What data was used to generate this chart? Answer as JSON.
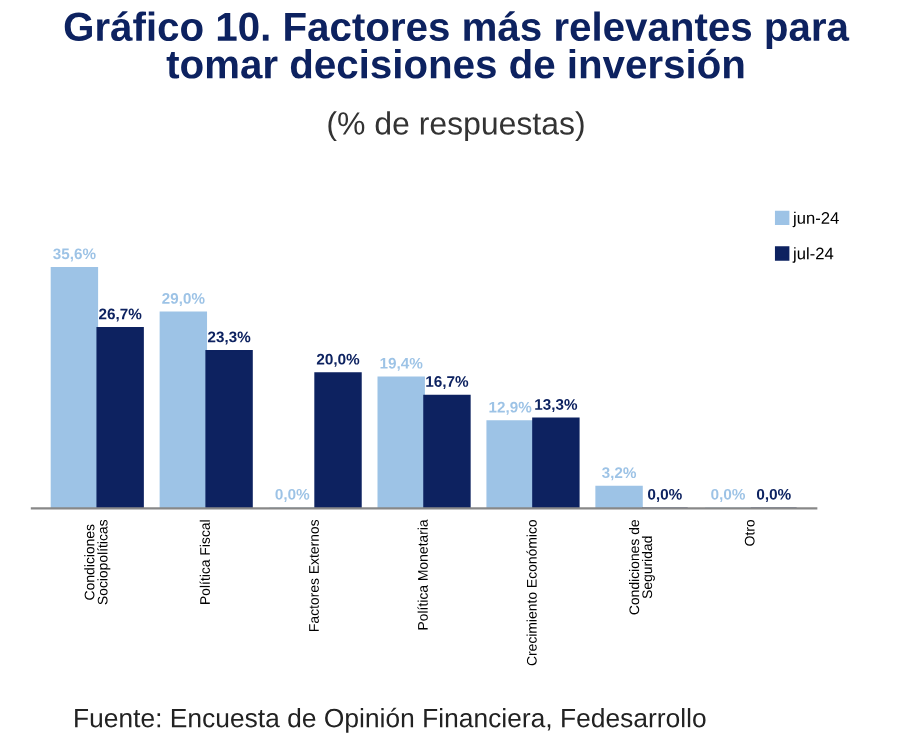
{
  "chart_data": {
    "type": "bar",
    "title": "Gráfico 10. Factores más relevantes para\ntomar decisiones de inversión",
    "subtitle": "(% de respuestas)",
    "categories": [
      "Condiciones\nSociopolíticas",
      "Política Fiscal",
      "Factores Externos",
      "Política Monetaria",
      "Crecimiento Económico",
      "Condiciones de\nSeguridad",
      "Otro"
    ],
    "series": [
      {
        "name": "jun-24",
        "color": "#9dc3e6",
        "values": [
          35.6,
          29.0,
          0.0,
          19.4,
          12.9,
          3.2,
          0.0
        ],
        "value_labels": [
          "35,6%",
          "29,0%",
          "0,0%",
          "19,4%",
          "12,9%",
          "3,2%",
          "0,0%"
        ]
      },
      {
        "name": "jul-24",
        "color": "#0d2260",
        "values": [
          26.7,
          23.3,
          20.0,
          16.7,
          13.3,
          0.0,
          0.0
        ],
        "value_labels": [
          "26,7%",
          "23,3%",
          "20,0%",
          "16,7%",
          "13,3%",
          "0,0%",
          "0,0%"
        ]
      }
    ],
    "legend": "top right",
    "annotations": [
      "Fuente: Encuesta de Opinión Financiera, Fedesarrollo"
    ]
  }
}
